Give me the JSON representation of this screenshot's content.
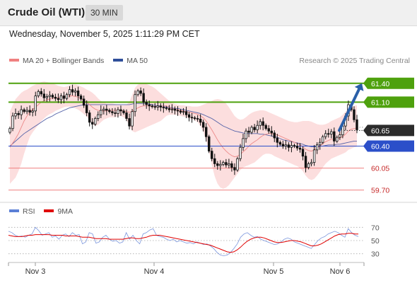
{
  "header": {
    "title": "Crude Oil (WTI)",
    "timeframe": "30 MIN"
  },
  "datetime": "Wednesday, November 5, 2025 1:11:29 PM CET",
  "legend": {
    "items": [
      {
        "label": "MA 20 + Bollinger Bands",
        "color": "#f08080"
      },
      {
        "label": "MA 50",
        "color": "#2f4f9a"
      }
    ],
    "credit": "Research © 2025 Trading Central"
  },
  "rsi_legend": {
    "items": [
      {
        "label": "RSI",
        "color": "#5b7fd6"
      },
      {
        "label": "9MA",
        "color": "#e00000"
      }
    ]
  },
  "colors": {
    "resistance": "#4ea10d",
    "support_blue": "#2b4fc9",
    "support_red": "#f08080",
    "current": "#2b2b2b",
    "candle": "#111111",
    "arrow": "#2a5fa8"
  },
  "chart_data": [
    {
      "type": "candlestick",
      "x_ticks": [
        "Nov 3",
        "Nov 4",
        "Nov 5",
        "Nov 6"
      ],
      "ylim": [
        59.55,
        61.6
      ],
      "levels": [
        {
          "value": 61.4,
          "label": "61.40",
          "kind": "resistance"
        },
        {
          "value": 61.1,
          "label": "61.10",
          "kind": "resistance"
        },
        {
          "value": 60.65,
          "label": "60.65",
          "kind": "current"
        },
        {
          "value": 60.4,
          "label": "60.40",
          "kind": "support_blue"
        },
        {
          "value": 60.05,
          "label": "60.05",
          "kind": "support_red"
        },
        {
          "value": 59.7,
          "label": "59.70",
          "kind": "support_red"
        }
      ],
      "projection": {
        "from": 60.65,
        "to": 61.4
      },
      "close": [
        60.68,
        60.88,
        60.92,
        60.9,
        60.98,
        60.95,
        60.97,
        60.94,
        60.96,
        61.2,
        61.27,
        61.23,
        61.17,
        61.19,
        61.21,
        61.18,
        61.16,
        61.14,
        61.2,
        61.16,
        61.22,
        61.3,
        61.26,
        61.28,
        61.2,
        61.15,
        61.05,
        60.93,
        60.78,
        60.75,
        60.84,
        60.9,
        60.97,
        60.99,
        60.97,
        60.95,
        60.93,
        60.92,
        60.98,
        60.96,
        60.93,
        60.84,
        60.72,
        60.95,
        61.22,
        61.28,
        61.24,
        61.1,
        61.06,
        61.04,
        61.03,
        61.02,
        61.04,
        61.02,
        61.01,
        61.0,
        60.98,
        60.99,
        60.97,
        60.96,
        60.94,
        60.95,
        60.9,
        60.86,
        60.85,
        60.84,
        60.83,
        60.78,
        60.7,
        60.55,
        60.32,
        60.2,
        60.12,
        60.09,
        60.11,
        60.14,
        60.1,
        60.12,
        60.06,
        60.02,
        60.2,
        60.38,
        60.52,
        60.64,
        60.62,
        60.7,
        60.66,
        60.73,
        60.79,
        60.73,
        60.68,
        60.64,
        60.61,
        60.53,
        60.46,
        60.43,
        60.4,
        60.42,
        60.38,
        60.41,
        60.4,
        60.37,
        60.35,
        60.24,
        60.06,
        60.12,
        60.14,
        60.34,
        60.42,
        60.46,
        60.55,
        60.6,
        60.59,
        60.63,
        60.48,
        60.54,
        60.58,
        60.72,
        60.88,
        61.06,
        60.98,
        60.82,
        60.66
      ],
      "ma20": [
        60.38,
        60.45,
        60.52,
        60.6,
        60.7,
        60.8,
        60.88,
        60.94,
        60.98,
        61.02,
        61.06,
        61.1,
        61.12,
        61.14,
        61.15,
        61.16,
        61.17,
        61.17,
        61.18,
        61.18,
        61.19,
        61.2,
        61.2,
        61.19,
        61.18,
        61.16,
        61.13,
        61.1,
        61.06,
        61.02,
        60.99,
        60.97,
        60.96,
        60.96,
        60.96,
        60.97,
        60.97,
        60.97,
        60.97,
        60.97,
        60.96,
        60.95,
        60.94,
        60.95,
        60.98,
        61.01,
        61.03,
        61.04,
        61.04,
        61.04,
        61.03,
        61.03,
        61.03,
        61.03,
        61.04,
        61.04,
        61.02,
        61.0,
        60.99,
        60.98,
        60.97,
        60.96,
        60.95,
        60.94,
        60.93,
        60.92,
        60.91,
        60.88,
        60.85,
        60.8,
        60.73,
        60.66,
        60.58,
        60.5,
        60.43,
        60.37,
        60.32,
        60.28,
        60.25,
        60.23,
        60.24,
        60.27,
        60.31,
        60.35,
        60.4,
        60.44,
        60.47,
        60.5,
        60.54,
        60.57,
        60.59,
        60.6,
        60.6,
        60.59,
        60.58,
        60.56,
        60.54,
        60.52,
        60.5,
        60.48,
        60.46,
        60.44,
        60.42,
        60.39,
        60.35,
        60.33,
        60.32,
        60.34,
        60.37,
        60.4,
        60.44,
        60.47,
        60.49,
        60.51,
        60.51,
        60.52,
        60.53,
        60.55,
        60.59,
        60.64,
        60.67,
        60.68,
        60.69
      ],
      "bb_upper": [
        60.95,
        61.05,
        61.15,
        61.2,
        61.25,
        61.28,
        61.3,
        61.33,
        61.36,
        61.38,
        61.4,
        61.42,
        61.43,
        61.42,
        61.41,
        61.4,
        61.38,
        61.36,
        61.35,
        61.34,
        61.35,
        61.37,
        61.38,
        61.38,
        61.37,
        61.35,
        61.33,
        61.3,
        61.28,
        61.25,
        61.21,
        61.16,
        61.12,
        61.1,
        61.08,
        61.08,
        61.08,
        61.07,
        61.06,
        61.05,
        61.05,
        61.06,
        61.1,
        61.22,
        61.33,
        61.38,
        61.4,
        61.4,
        61.39,
        61.37,
        61.35,
        61.32,
        61.28,
        61.24,
        61.2,
        61.16,
        61.12,
        61.09,
        61.07,
        61.06,
        61.05,
        61.05,
        61.04,
        61.04,
        61.03,
        61.03,
        61.03,
        61.04,
        61.06,
        61.08,
        61.1,
        61.12,
        61.14,
        61.15,
        61.14,
        61.12,
        61.08,
        61.02,
        60.95,
        60.88,
        60.84,
        60.82,
        60.83,
        60.86,
        60.9,
        60.93,
        60.95,
        60.96,
        60.97,
        60.97,
        60.96,
        60.94,
        60.92,
        60.9,
        60.88,
        60.86,
        60.84,
        60.82,
        60.8,
        60.79,
        60.78,
        60.78,
        60.79,
        60.8,
        60.8,
        60.8,
        60.79,
        60.77,
        60.75,
        60.74,
        60.74,
        60.75,
        60.77,
        60.8,
        60.82,
        60.84,
        60.86,
        60.9,
        60.95,
        61.0,
        61.03,
        61.04,
        61.05
      ],
      "bb_lower": [
        59.8,
        59.85,
        59.9,
        60.0,
        60.12,
        60.28,
        60.42,
        60.55,
        60.62,
        60.68,
        60.74,
        60.8,
        60.84,
        60.88,
        60.91,
        60.93,
        60.96,
        60.98,
        61.0,
        61.02,
        61.03,
        61.03,
        61.02,
        61.0,
        60.98,
        60.95,
        60.91,
        60.87,
        60.81,
        60.75,
        60.72,
        60.74,
        60.78,
        60.82,
        60.84,
        60.86,
        60.86,
        60.86,
        60.87,
        60.88,
        60.86,
        60.82,
        60.72,
        60.64,
        60.62,
        60.64,
        60.66,
        60.68,
        60.7,
        60.72,
        60.74,
        60.76,
        60.78,
        60.8,
        60.84,
        60.88,
        60.9,
        60.9,
        60.9,
        60.89,
        60.88,
        60.87,
        60.86,
        60.84,
        60.83,
        60.81,
        60.78,
        60.72,
        60.62,
        60.48,
        60.3,
        60.1,
        59.92,
        59.8,
        59.74,
        59.72,
        59.74,
        59.78,
        59.84,
        59.9,
        59.96,
        60.02,
        60.06,
        60.08,
        60.1,
        60.12,
        60.14,
        60.18,
        60.22,
        60.26,
        60.28,
        60.28,
        60.27,
        60.24,
        60.22,
        60.2,
        60.18,
        60.16,
        60.14,
        60.12,
        60.1,
        60.08,
        60.05,
        60.0,
        59.93,
        59.88,
        59.86,
        59.88,
        59.93,
        59.99,
        60.06,
        60.12,
        60.16,
        60.2,
        60.22,
        60.24,
        60.26,
        60.28,
        60.3,
        60.34,
        60.36,
        60.38,
        60.39
      ],
      "ma50": [
        60.4,
        60.44,
        60.48,
        60.52,
        60.56,
        60.6,
        60.63,
        60.66,
        60.69,
        60.72,
        60.75,
        60.78,
        60.81,
        60.84,
        60.86,
        60.88,
        60.91,
        60.93,
        60.95,
        60.97,
        60.99,
        61.01,
        61.02,
        61.03,
        61.04,
        61.05,
        61.06,
        61.06,
        61.06,
        61.06,
        61.06,
        61.06,
        61.06,
        61.06,
        61.06,
        61.06,
        61.06,
        61.06,
        61.06,
        61.06,
        61.06,
        61.06,
        61.06,
        61.07,
        61.08,
        61.08,
        61.08,
        61.08,
        61.08,
        61.07,
        61.06,
        61.05,
        61.04,
        61.04,
        61.03,
        61.02,
        61.02,
        61.01,
        61.0,
        61.0,
        60.99,
        60.98,
        60.97,
        60.96,
        60.95,
        60.94,
        60.93,
        60.92,
        60.9,
        60.88,
        60.86,
        60.84,
        60.81,
        60.78,
        60.75,
        60.72,
        60.7,
        60.68,
        60.66,
        60.64,
        60.63,
        60.62,
        60.61,
        60.6,
        60.6,
        60.6,
        60.6,
        60.6,
        60.59,
        60.59,
        60.58,
        60.57,
        60.56,
        60.55,
        60.54,
        60.52,
        60.5,
        60.49,
        60.48,
        60.47,
        60.46,
        60.45,
        60.44,
        60.43,
        60.41,
        60.4,
        60.39,
        60.39,
        60.39,
        60.4,
        60.4,
        60.41,
        60.42,
        60.42,
        60.42,
        60.43,
        60.43,
        60.44,
        60.45,
        60.46,
        60.47,
        60.48,
        60.48
      ]
    },
    {
      "type": "line",
      "title": "RSI",
      "ylim": [
        20,
        80
      ],
      "y_ticks": [
        70,
        50,
        30
      ],
      "series": [
        {
          "name": "RSI",
          "values": [
            64,
            62,
            58,
            56,
            57,
            55,
            58,
            60,
            70,
            65,
            58,
            60,
            62,
            55,
            57,
            52,
            58,
            60,
            56,
            62,
            58,
            59,
            45,
            48,
            62,
            60,
            46,
            48,
            55,
            58,
            52,
            49,
            50,
            46,
            48,
            62,
            52,
            58,
            50,
            45,
            60,
            62,
            66,
            68,
            58,
            56,
            55,
            52,
            50,
            52,
            48,
            50,
            48,
            46,
            47,
            45,
            48,
            46,
            44,
            45,
            42,
            38,
            32,
            28,
            27,
            28,
            32,
            38,
            45,
            55,
            60,
            62,
            58,
            55,
            56,
            52,
            50,
            48,
            46,
            44,
            45,
            48,
            52,
            54,
            52,
            48,
            46,
            44,
            42,
            40,
            38,
            44,
            50,
            54,
            56,
            60,
            62,
            64,
            62,
            58,
            55,
            68,
            62,
            58,
            56
          ]
        },
        {
          "name": "9MA",
          "values": [
            58,
            57,
            56,
            56,
            56,
            57,
            58,
            58,
            59,
            59,
            59,
            59,
            59,
            58,
            58,
            58,
            58,
            57,
            57,
            57,
            57,
            56,
            55,
            55,
            55,
            54,
            53,
            53,
            53,
            53,
            52,
            52,
            52,
            52,
            52,
            53,
            54,
            54,
            53,
            53,
            54,
            55,
            57,
            58,
            58,
            58,
            57,
            56,
            55,
            54,
            53,
            52,
            51,
            50,
            49,
            48,
            47,
            46,
            45,
            44,
            43,
            41,
            39,
            37,
            35,
            33,
            32,
            33,
            36,
            40,
            45,
            49,
            52,
            54,
            55,
            55,
            54,
            52,
            50,
            48,
            47,
            47,
            48,
            49,
            50,
            50,
            49,
            48,
            46,
            44,
            42,
            42,
            43,
            45,
            48,
            51,
            54,
            57,
            59,
            60,
            60,
            61,
            61,
            60,
            60
          ]
        }
      ]
    }
  ]
}
